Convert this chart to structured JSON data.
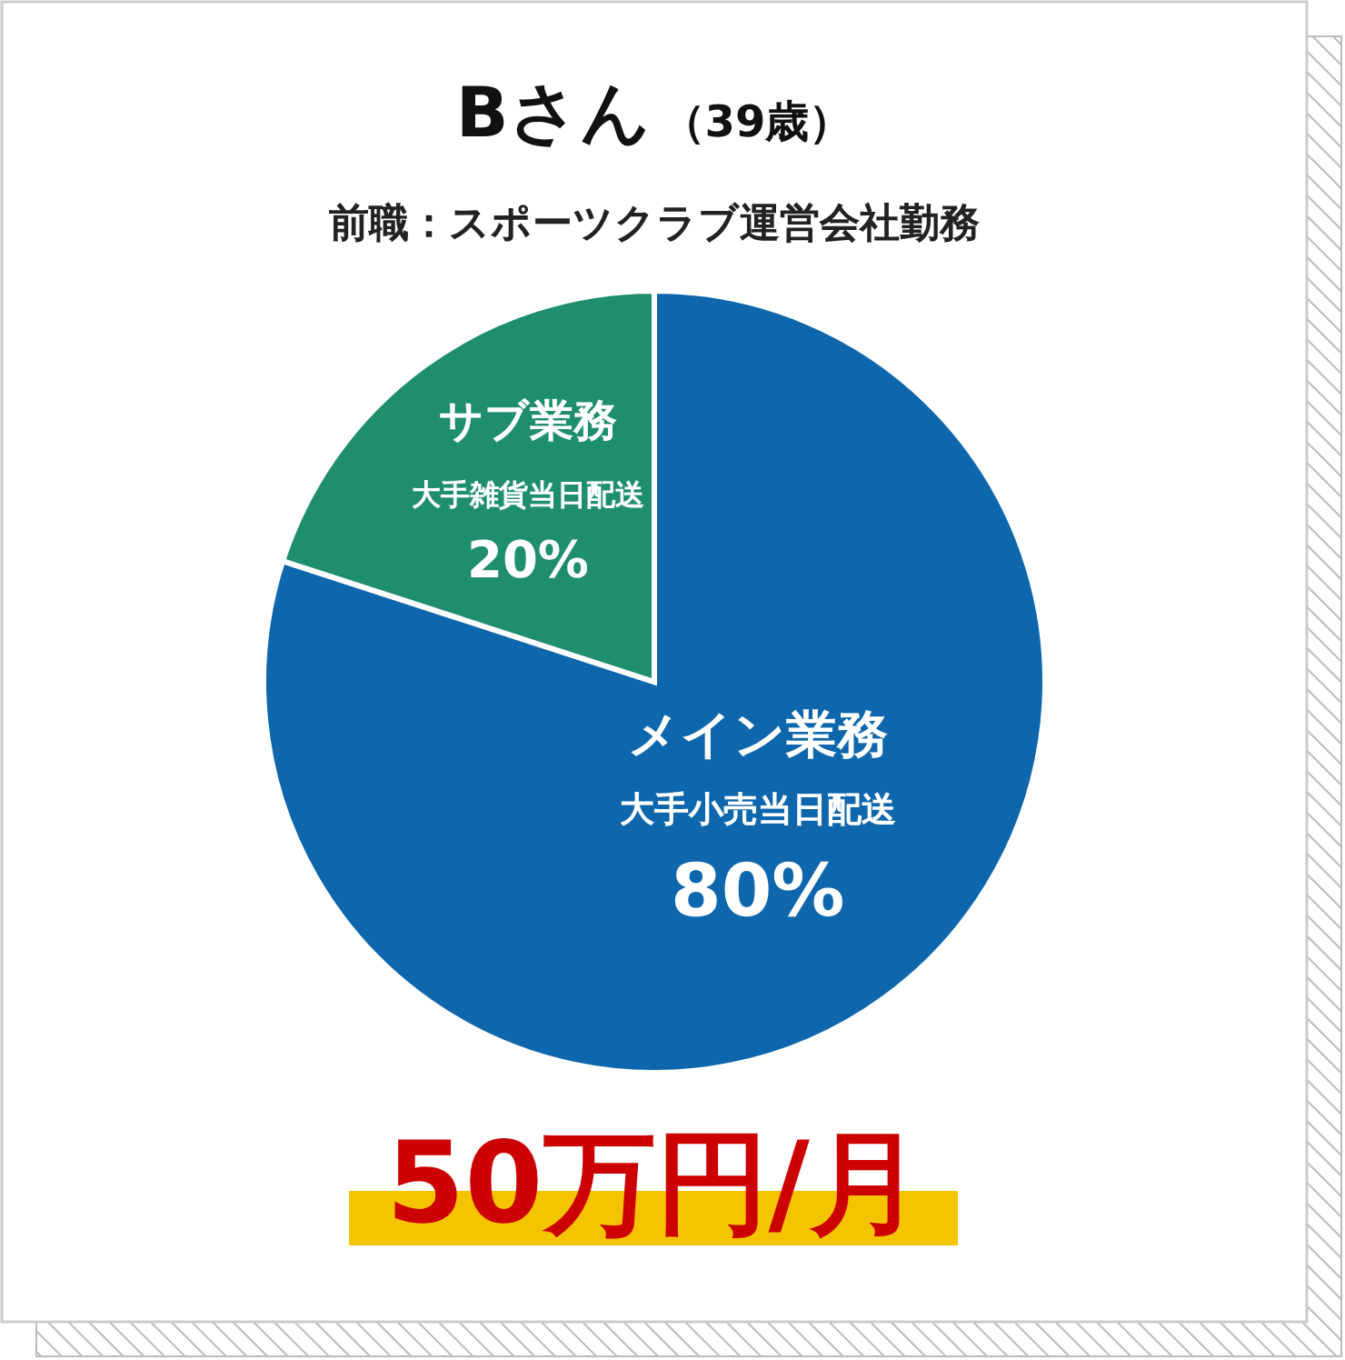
{
  "chart_data": {
    "type": "pie",
    "title": "Bさん",
    "subtitle": "前職：スポーツクラブ運営会社勤務",
    "categories": [
      "メイン業務",
      "サブ業務"
    ],
    "values": [
      80,
      20
    ],
    "colors": [
      "#0e67ad",
      "#1e8e6e"
    ],
    "value_labels": [
      "80%",
      "20%"
    ],
    "annotations": [
      "（39歳）",
      "大手小売当日配送",
      "大手雑貨当日配送",
      "50万円/月"
    ]
  }
}
